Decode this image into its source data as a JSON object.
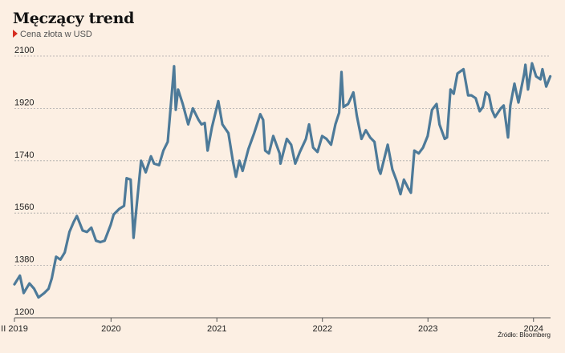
{
  "title": "Męczący trend",
  "subtitle": "Cena złota w USD",
  "source": "Źródło: Bloomberg",
  "colors": {
    "background": "#fcefe3",
    "line": "#4d7a99",
    "grid": "#a9a9a9",
    "marker": "#d62d20"
  },
  "chart_data": {
    "type": "line",
    "title": "Męczący trend",
    "subtitle": "Cena złota w USD",
    "ylim": [
      1200,
      2100
    ],
    "yticks": [
      1200,
      1380,
      1560,
      1740,
      1920,
      2100
    ],
    "ytick_labels": [
      "1200",
      "1380",
      "1560",
      "1740",
      "1920",
      "2100"
    ],
    "xlim": [
      "2019-02-01",
      "2024-02-29"
    ],
    "xticks": [
      "2019-02-01",
      "2020-01-01",
      "2021-01-01",
      "2022-01-01",
      "2023-01-01",
      "2024-01-01"
    ],
    "xtick_labels": [
      "II 2019",
      "2020",
      "2021",
      "2022",
      "2023",
      "2024"
    ],
    "grid": "horizontal dashed",
    "series": [
      {
        "values": [
          [
            "2019-02-01",
            1315
          ],
          [
            "2019-02-20",
            1345
          ],
          [
            "2019-03-05",
            1285
          ],
          [
            "2019-03-25",
            1318
          ],
          [
            "2019-04-10",
            1300
          ],
          [
            "2019-04-25",
            1270
          ],
          [
            "2019-05-15",
            1285
          ],
          [
            "2019-05-30",
            1300
          ],
          [
            "2019-06-10",
            1335
          ],
          [
            "2019-06-25",
            1410
          ],
          [
            "2019-07-10",
            1400
          ],
          [
            "2019-07-25",
            1425
          ],
          [
            "2019-08-10",
            1495
          ],
          [
            "2019-08-25",
            1530
          ],
          [
            "2019-09-05",
            1550
          ],
          [
            "2019-09-25",
            1500
          ],
          [
            "2019-10-10",
            1495
          ],
          [
            "2019-10-25",
            1510
          ],
          [
            "2019-11-10",
            1465
          ],
          [
            "2019-11-25",
            1460
          ],
          [
            "2019-12-10",
            1465
          ],
          [
            "2019-12-31",
            1520
          ],
          [
            "2020-01-10",
            1555
          ],
          [
            "2020-01-30",
            1575
          ],
          [
            "2020-02-15",
            1585
          ],
          [
            "2020-02-24",
            1680
          ],
          [
            "2020-03-09",
            1675
          ],
          [
            "2020-03-19",
            1475
          ],
          [
            "2020-03-31",
            1600
          ],
          [
            "2020-04-14",
            1740
          ],
          [
            "2020-04-30",
            1700
          ],
          [
            "2020-05-18",
            1755
          ],
          [
            "2020-05-29",
            1730
          ],
          [
            "2020-06-15",
            1725
          ],
          [
            "2020-06-30",
            1775
          ],
          [
            "2020-07-15",
            1805
          ],
          [
            "2020-07-28",
            1955
          ],
          [
            "2020-08-06",
            2065
          ],
          [
            "2020-08-12",
            1915
          ],
          [
            "2020-08-20",
            1985
          ],
          [
            "2020-09-05",
            1935
          ],
          [
            "2020-09-24",
            1865
          ],
          [
            "2020-10-10",
            1920
          ],
          [
            "2020-10-30",
            1880
          ],
          [
            "2020-11-09",
            1865
          ],
          [
            "2020-11-20",
            1870
          ],
          [
            "2020-11-30",
            1775
          ],
          [
            "2020-12-15",
            1855
          ],
          [
            "2021-01-06",
            1945
          ],
          [
            "2021-01-20",
            1865
          ],
          [
            "2021-02-10",
            1835
          ],
          [
            "2021-02-26",
            1735
          ],
          [
            "2021-03-08",
            1685
          ],
          [
            "2021-03-20",
            1740
          ],
          [
            "2021-03-31",
            1705
          ],
          [
            "2021-04-20",
            1780
          ],
          [
            "2021-05-10",
            1835
          ],
          [
            "2021-05-31",
            1900
          ],
          [
            "2021-06-10",
            1880
          ],
          [
            "2021-06-17",
            1775
          ],
          [
            "2021-06-30",
            1765
          ],
          [
            "2021-07-15",
            1825
          ],
          [
            "2021-08-06",
            1765
          ],
          [
            "2021-08-09",
            1730
          ],
          [
            "2021-08-31",
            1815
          ],
          [
            "2021-09-15",
            1795
          ],
          [
            "2021-09-29",
            1730
          ],
          [
            "2021-10-15",
            1770
          ],
          [
            "2021-11-05",
            1815
          ],
          [
            "2021-11-16",
            1865
          ],
          [
            "2021-11-30",
            1785
          ],
          [
            "2021-12-15",
            1770
          ],
          [
            "2021-12-31",
            1825
          ],
          [
            "2022-01-15",
            1815
          ],
          [
            "2022-01-31",
            1795
          ],
          [
            "2022-02-15",
            1865
          ],
          [
            "2022-02-28",
            1905
          ],
          [
            "2022-03-08",
            2045
          ],
          [
            "2022-03-15",
            1925
          ],
          [
            "2022-03-31",
            1935
          ],
          [
            "2022-04-18",
            1975
          ],
          [
            "2022-04-30",
            1895
          ],
          [
            "2022-05-16",
            1815
          ],
          [
            "2022-05-31",
            1845
          ],
          [
            "2022-06-15",
            1820
          ],
          [
            "2022-06-30",
            1805
          ],
          [
            "2022-07-15",
            1710
          ],
          [
            "2022-07-21",
            1695
          ],
          [
            "2022-08-15",
            1795
          ],
          [
            "2022-08-31",
            1710
          ],
          [
            "2022-09-15",
            1670
          ],
          [
            "2022-09-28",
            1625
          ],
          [
            "2022-10-10",
            1675
          ],
          [
            "2022-10-25",
            1645
          ],
          [
            "2022-11-03",
            1630
          ],
          [
            "2022-11-15",
            1775
          ],
          [
            "2022-11-30",
            1765
          ],
          [
            "2022-12-15",
            1785
          ],
          [
            "2022-12-31",
            1825
          ],
          [
            "2023-01-15",
            1915
          ],
          [
            "2023-01-31",
            1935
          ],
          [
            "2023-02-10",
            1865
          ],
          [
            "2023-02-28",
            1815
          ],
          [
            "2023-03-08",
            1820
          ],
          [
            "2023-03-20",
            1985
          ],
          [
            "2023-03-31",
            1970
          ],
          [
            "2023-04-13",
            2040
          ],
          [
            "2023-05-04",
            2055
          ],
          [
            "2023-05-20",
            1965
          ],
          [
            "2023-05-31",
            1965
          ],
          [
            "2023-06-15",
            1955
          ],
          [
            "2023-06-29",
            1910
          ],
          [
            "2023-07-10",
            1925
          ],
          [
            "2023-07-20",
            1975
          ],
          [
            "2023-07-31",
            1965
          ],
          [
            "2023-08-10",
            1915
          ],
          [
            "2023-08-21",
            1890
          ],
          [
            "2023-09-10",
            1920
          ],
          [
            "2023-09-20",
            1930
          ],
          [
            "2023-10-05",
            1820
          ],
          [
            "2023-10-13",
            1930
          ],
          [
            "2023-10-27",
            2005
          ],
          [
            "2023-11-10",
            1940
          ],
          [
            "2023-11-30",
            2040
          ],
          [
            "2023-12-04",
            2070
          ],
          [
            "2023-12-13",
            1985
          ],
          [
            "2023-12-27",
            2075
          ],
          [
            "2024-01-10",
            2030
          ],
          [
            "2024-01-25",
            2020
          ],
          [
            "2024-02-01",
            2055
          ],
          [
            "2024-02-14",
            1995
          ],
          [
            "2024-02-28",
            2030
          ]
        ]
      }
    ]
  }
}
